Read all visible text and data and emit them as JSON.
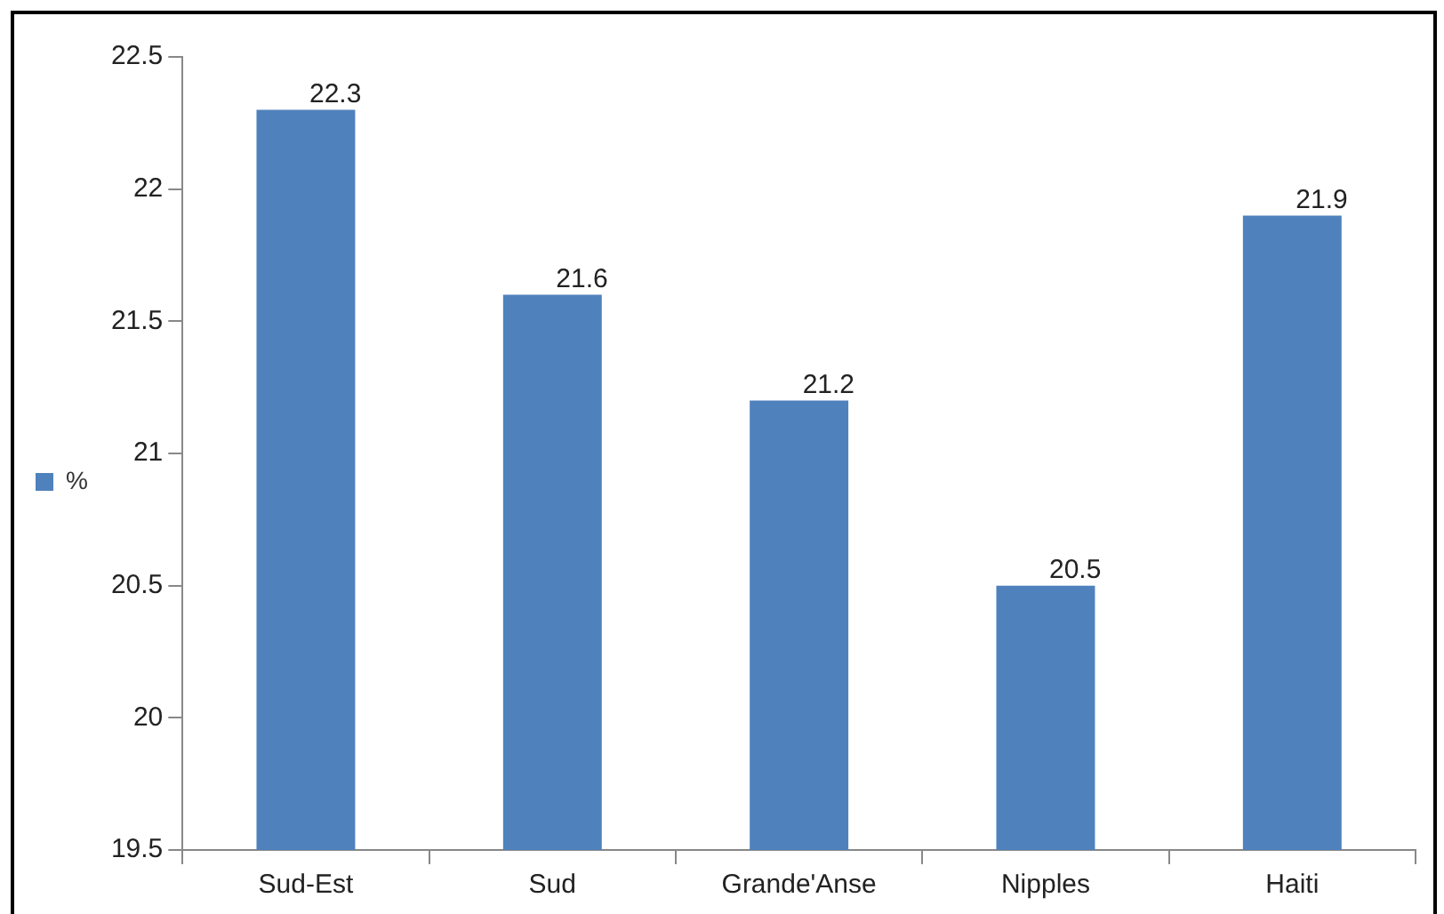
{
  "chart_data": {
    "type": "bar",
    "categories": [
      "Sud-Est",
      "Sud",
      "Grande'Anse",
      "Nipples",
      "Haiti"
    ],
    "series": [
      {
        "name": "%",
        "color": "#4f81bd",
        "values": [
          22.3,
          21.6,
          21.2,
          20.5,
          21.9
        ]
      }
    ],
    "ylim": [
      19.5,
      22.5
    ],
    "yticks": [
      19.5,
      20,
      20.5,
      21,
      21.5,
      22,
      22.5
    ],
    "grid": false,
    "legend": "left",
    "data_labels": true
  }
}
